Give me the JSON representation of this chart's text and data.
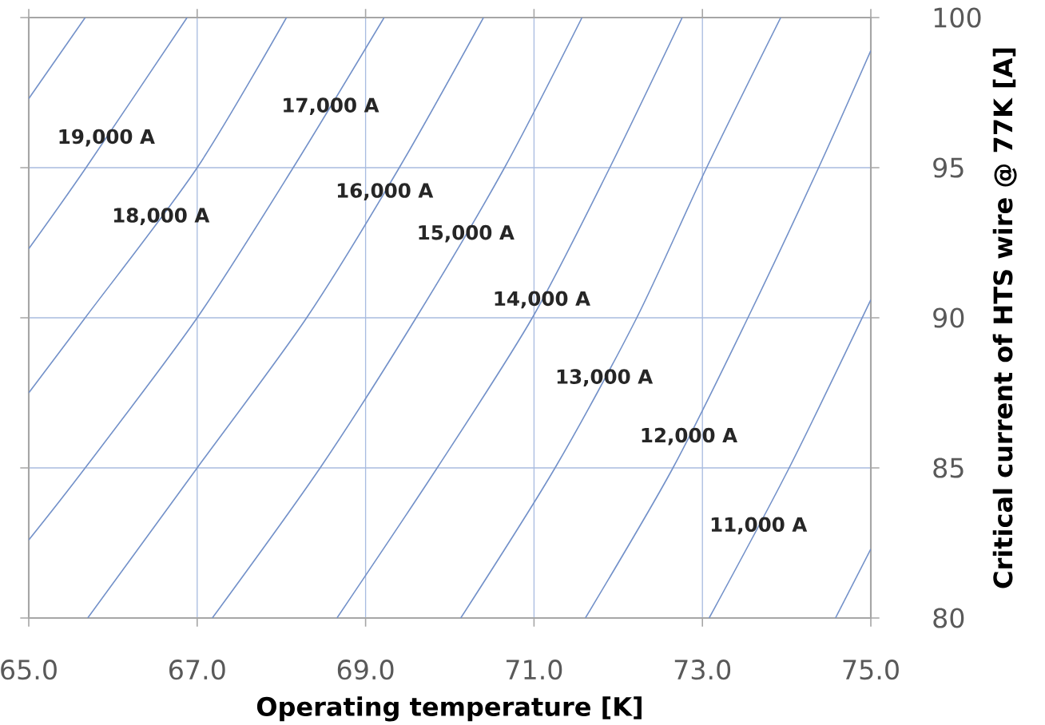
{
  "chart_data": {
    "type": "line",
    "xlabel": "Operating temperature [K]",
    "ylabel": "Critical current of HTS wire @ 77K [A]",
    "xlim": [
      65,
      75
    ],
    "ylim": [
      80,
      100
    ],
    "xticks": [
      {
        "value": 65,
        "label": "65.0"
      },
      {
        "value": 67,
        "label": "67.0"
      },
      {
        "value": 69,
        "label": "69.0"
      },
      {
        "value": 71,
        "label": "71.0"
      },
      {
        "value": 73,
        "label": "73.0"
      },
      {
        "value": 75,
        "label": "75.0"
      }
    ],
    "yticks": [
      80,
      85,
      90,
      95,
      100
    ],
    "grid": true,
    "series": [
      {
        "color": "#7391c9",
        "x": [
          65.0,
          65.67
        ],
        "values": [
          97.3,
          100
        ]
      },
      {
        "name": "19,000 A",
        "color": "#7391c9",
        "x": [
          65.0,
          65.68,
          66.88
        ],
        "values": [
          92.3,
          95,
          100
        ]
      },
      {
        "name": "18,000 A",
        "color": "#7391c9",
        "x": [
          65.0,
          65.67,
          67.0,
          68.06
        ],
        "values": [
          87.5,
          90,
          95,
          100
        ]
      },
      {
        "name": "17,000 A",
        "color": "#7391c9",
        "x": [
          65.0,
          65.67,
          67.0,
          68.14,
          69.22
        ],
        "values": [
          82.6,
          85,
          90,
          95,
          100
        ]
      },
      {
        "name": "16,000 A",
        "color": "#7391c9",
        "x": [
          65.7,
          67.0,
          68.3,
          69.4,
          70.4
        ],
        "values": [
          80,
          85,
          90,
          95,
          100
        ]
      },
      {
        "name": "15,000 A",
        "color": "#7391c9",
        "x": [
          67.18,
          68.46,
          69.6,
          70.65,
          71.57
        ],
        "values": [
          80,
          85,
          90,
          95,
          100
        ]
      },
      {
        "name": "14,000 A",
        "color": "#7391c9",
        "x": [
          68.66,
          69.85,
          70.98,
          71.9,
          72.76
        ],
        "values": [
          80,
          85,
          90,
          95,
          100
        ]
      },
      {
        "name": "13,000 A",
        "color": "#7391c9",
        "x": [
          70.13,
          71.25,
          72.22,
          73.05,
          73.93
        ],
        "values": [
          80,
          85,
          90,
          95,
          100
        ]
      },
      {
        "name": "12,000 A",
        "color": "#7391c9",
        "x": [
          71.61,
          72.65,
          73.54,
          74.38,
          75.0
        ],
        "values": [
          80,
          85,
          90,
          95,
          98.9
        ]
      },
      {
        "name": "11,000 A",
        "color": "#7391c9",
        "x": [
          73.08,
          74.03,
          75.0
        ],
        "values": [
          80,
          85,
          90.6
        ]
      },
      {
        "color": "#7391c9",
        "x": [
          74.58,
          75.0
        ],
        "values": [
          80,
          82.3
        ]
      }
    ]
  }
}
